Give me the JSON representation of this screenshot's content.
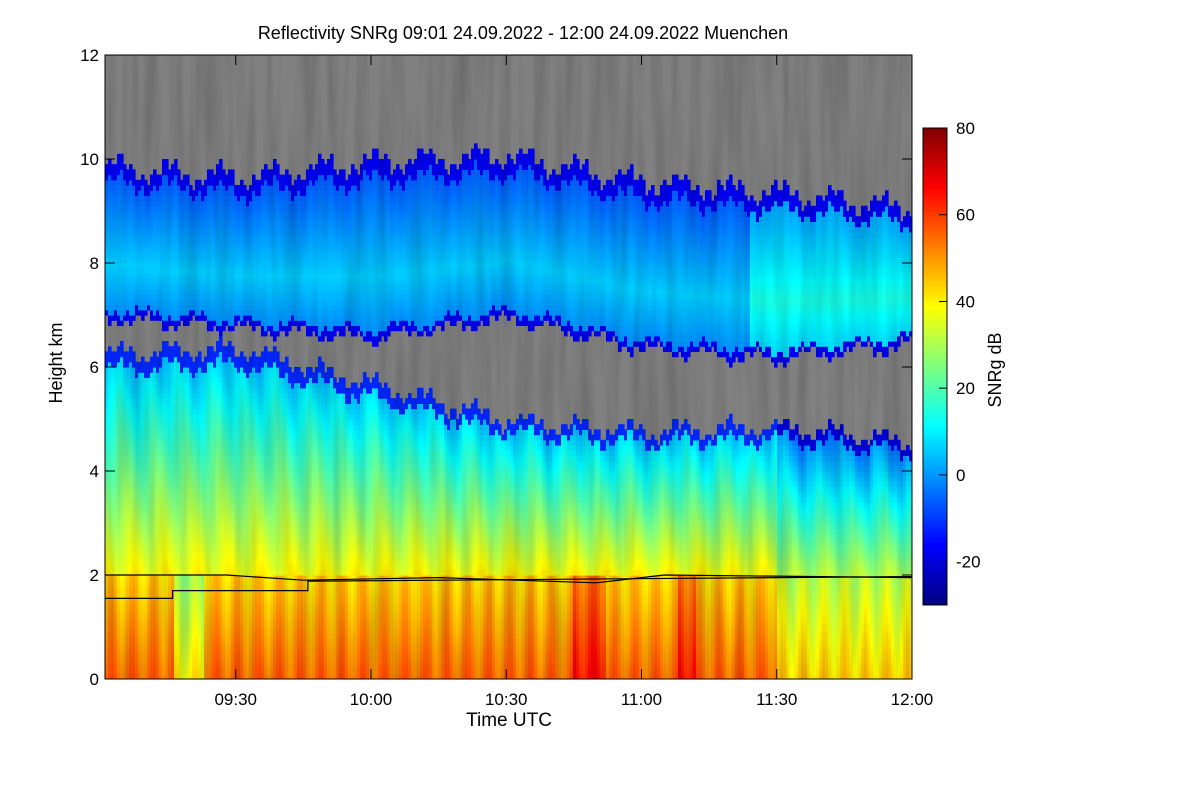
{
  "chart_data": {
    "type": "heatmap",
    "title": "Reflectivity SNRg   09:01 24.09.2022 - 12:00 24.09.2022 Muenchen",
    "xlabel": "Time UTC",
    "ylabel": "Height km",
    "x_range_min": [
      541,
      720
    ],
    "xlim_labels": [
      "09:01",
      "12:00"
    ],
    "ylim": [
      0,
      12
    ],
    "x_ticks": [
      {
        "min": 570,
        "label": "09:30"
      },
      {
        "min": 600,
        "label": "10:00"
      },
      {
        "min": 630,
        "label": "10:30"
      },
      {
        "min": 660,
        "label": "11:00"
      },
      {
        "min": 690,
        "label": "11:30"
      },
      {
        "min": 720,
        "label": "12:00"
      }
    ],
    "y_ticks": [
      {
        "value": 0,
        "label": "0"
      },
      {
        "value": 2,
        "label": "2"
      },
      {
        "value": 4,
        "label": "4"
      },
      {
        "value": 6,
        "label": "6"
      },
      {
        "value": 8,
        "label": "8"
      },
      {
        "value": 10,
        "label": "10"
      },
      {
        "value": 12,
        "label": "12"
      }
    ],
    "colorbar": {
      "label": "SNRg dB",
      "range": [
        -30,
        80
      ],
      "ticks": [
        {
          "value": 80,
          "label": "80"
        },
        {
          "value": 60,
          "label": "60"
        },
        {
          "value": 40,
          "label": "40"
        },
        {
          "value": 20,
          "label": "20"
        },
        {
          "value": 0,
          "label": "0"
        },
        {
          "value": -20,
          "label": "-20"
        }
      ],
      "colormap": [
        "#00007f",
        "#0000ff",
        "#007fff",
        "#00ffff",
        "#7fff7f",
        "#ffff00",
        "#ff7f00",
        "#ff0000",
        "#7f0000"
      ]
    },
    "no_signal_color": "#808080",
    "regions": [
      {
        "name": "upper-cloud-layer",
        "min": 541,
        "max": 720,
        "base_km": [
          6.9,
          6.7,
          6.5,
          6.9,
          6.3,
          6.1,
          6.4
        ],
        "top_km": [
          9.8,
          9.6,
          9.9,
          10.0,
          9.5,
          9.3,
          9.0
        ],
        "snr_db": -10
      },
      {
        "name": "lower-precip-layer",
        "min": 541,
        "max": 720,
        "top_km": [
          6.2,
          6.3,
          5.6,
          4.9,
          4.7,
          4.8,
          4.5
        ],
        "snr_db": 25
      },
      {
        "name": "near-surface-rain",
        "min": 541,
        "max": 720,
        "top_km": 2.0,
        "snr_db": 55
      }
    ],
    "lines": [
      {
        "name": "boundary-layer-line-1",
        "points": [
          [
            541,
            2.0
          ],
          [
            568,
            2.0
          ],
          [
            585,
            1.9
          ],
          [
            615,
            1.95
          ],
          [
            650,
            1.85
          ],
          [
            665,
            2.0
          ],
          [
            720,
            1.95
          ]
        ]
      },
      {
        "name": "boundary-layer-line-2",
        "points": [
          [
            541,
            1.55
          ],
          [
            556,
            1.55
          ],
          [
            556,
            1.7
          ],
          [
            586,
            1.7
          ],
          [
            586,
            1.88
          ],
          [
            720,
            1.97
          ]
        ]
      }
    ]
  }
}
